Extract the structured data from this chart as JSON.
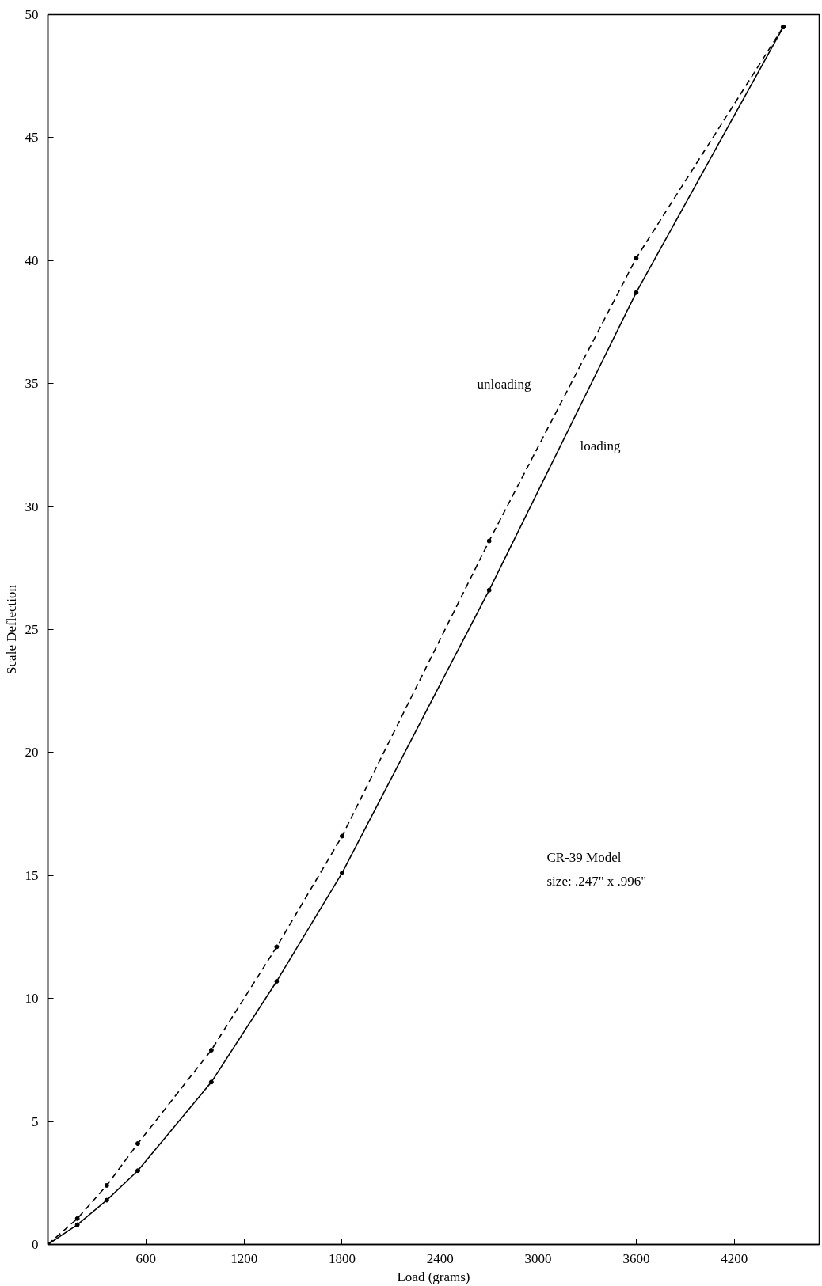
{
  "chart_data": {
    "type": "line",
    "xlabel": "Load (grams)",
    "ylabel": "Scale Deflection",
    "xlim": [
      0,
      4720
    ],
    "ylim": [
      0,
      50
    ],
    "xticks": [
      600,
      1200,
      1800,
      2400,
      3000,
      3600,
      4200
    ],
    "yticks": [
      0,
      5,
      10,
      15,
      20,
      25,
      30,
      35,
      40,
      45,
      50
    ],
    "grid": false,
    "marker": "circle",
    "series": [
      {
        "name": "loading",
        "color": "#000000",
        "line_style": "solid",
        "x": [
          0,
          180,
          360,
          550,
          1000,
          1400,
          1800,
          2700,
          3600,
          4500
        ],
        "values": [
          0,
          0.8,
          1.8,
          3.0,
          6.6,
          10.7,
          15.1,
          26.6,
          38.7,
          49.5
        ]
      },
      {
        "name": "unloading",
        "color": "#000000",
        "line_style": "dashed",
        "x": [
          0,
          180,
          360,
          550,
          1000,
          1400,
          1800,
          2700,
          3600,
          4500
        ],
        "values": [
          0,
          1.05,
          2.4,
          4.1,
          7.9,
          12.1,
          16.6,
          28.6,
          40.1,
          49.5
        ]
      }
    ],
    "annotations": [
      "CR-39 Model",
      "size:  .247\" x .996\""
    ]
  }
}
